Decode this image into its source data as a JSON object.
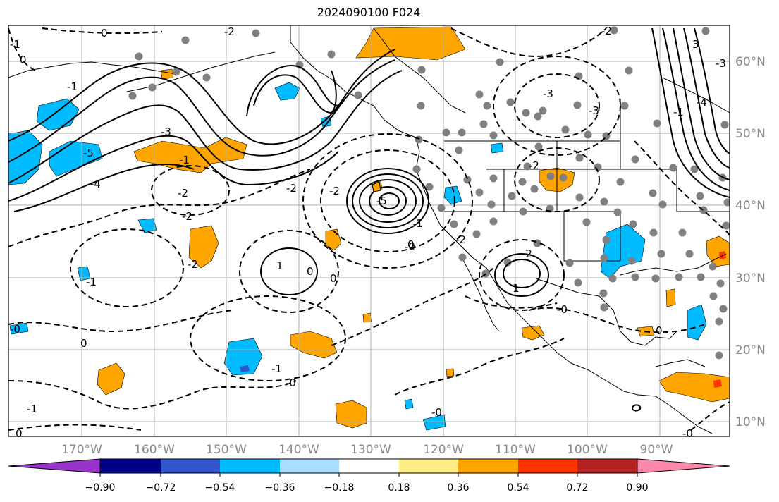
{
  "title": "2024090100 F024",
  "map": {
    "longitude_labels": [
      "170°W",
      "160°W",
      "150°W",
      "140°W",
      "130°W",
      "120°W",
      "110°W",
      "100°W",
      "90°W"
    ],
    "latitude_labels": [
      "60°N",
      "50°N",
      "40°N",
      "30°N",
      "20°N",
      "10°N"
    ],
    "grid": true,
    "label_color": "#8a8a8a"
  },
  "colorbar": {
    "ticks": [
      "−0.90",
      "−0.72",
      "−0.54",
      "−0.36",
      "−0.18",
      "0.18",
      "0.36",
      "0.54",
      "0.72",
      "0.90"
    ],
    "colors": [
      "#9933cc",
      "#000088",
      "#3355cc",
      "#00bbff",
      "#aaddff",
      "#ffffff",
      "#ffee88",
      "#ffa500",
      "#ff3300",
      "#b22222",
      "#ff88aa"
    ],
    "extend": "both"
  },
  "contour_labels": [
    "-2",
    "0",
    "-1",
    "-2",
    "-3",
    "-2",
    "-4",
    "-1",
    "-3",
    "-5",
    "-2",
    "-2",
    "-2",
    "-2",
    "-1",
    "0",
    "-0",
    "-1",
    "0",
    "-5",
    "-0",
    "-2",
    "-1",
    "-0",
    "-2",
    "-3",
    "0",
    "-3",
    "1",
    "-2",
    "-0",
    "0",
    "1",
    "-1",
    "-1",
    "-0",
    "-0",
    "0",
    "0",
    "0",
    "-1",
    "-4",
    "3"
  ],
  "features": {
    "contour_color": "#000000",
    "station_color": "#808080"
  }
}
